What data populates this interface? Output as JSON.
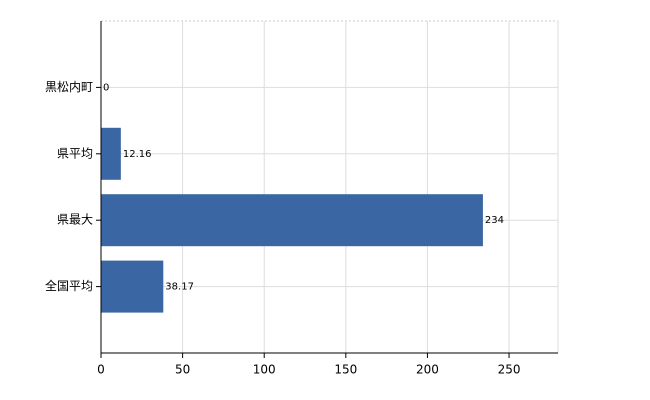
{
  "chart_data": {
    "type": "hbar",
    "categories": [
      "黒松内町",
      "県平均",
      "県最大",
      "全国平均"
    ],
    "values": [
      0,
      12.16,
      234,
      38.17
    ],
    "color": "#3a67a3",
    "xlim": [
      0,
      280
    ],
    "xticks": [
      0,
      50,
      100,
      150,
      200,
      250
    ],
    "grid": true
  }
}
